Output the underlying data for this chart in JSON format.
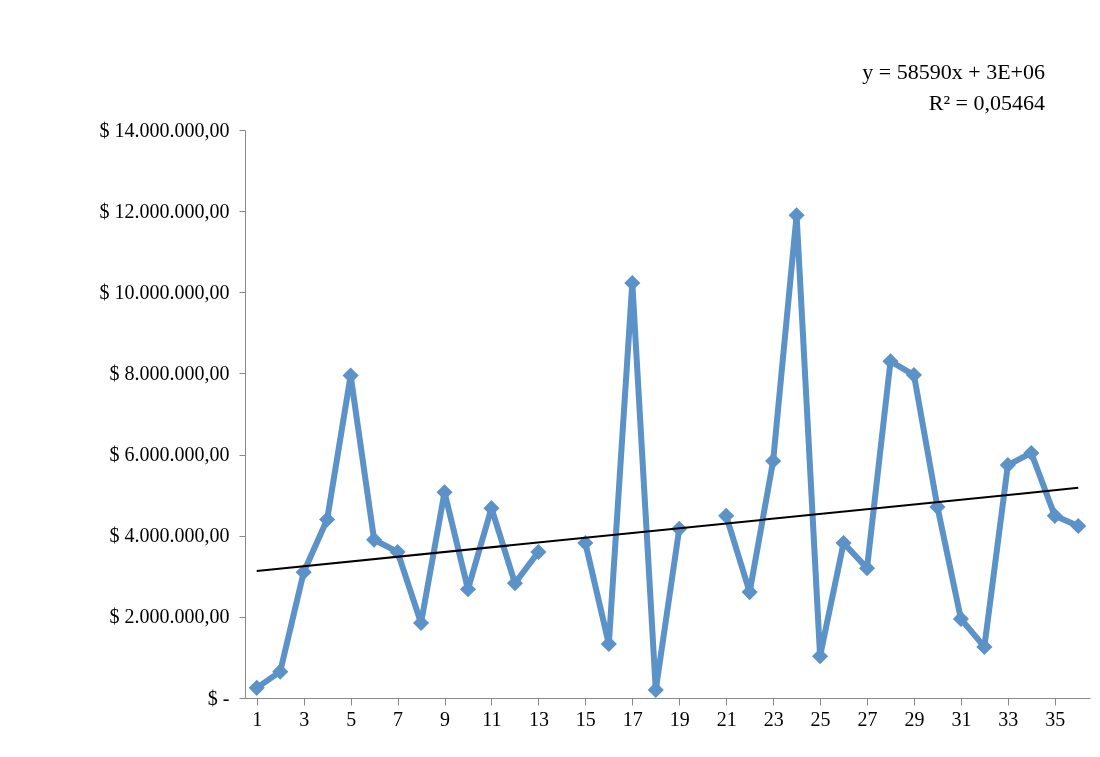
{
  "chart_data": {
    "type": "line",
    "x": [
      1,
      2,
      3,
      4,
      5,
      6,
      7,
      8,
      9,
      10,
      11,
      12,
      13,
      14,
      15,
      16,
      17,
      18,
      19,
      20,
      21,
      22,
      23,
      24,
      25,
      26,
      27,
      28,
      29,
      30,
      31,
      32,
      33,
      34,
      35,
      36
    ],
    "series": [
      {
        "color": "#5b92c8",
        "marker": "diamond",
        "values": [
          250000,
          650000,
          3100000,
          4400000,
          7950000,
          3900000,
          3600000,
          1850000,
          5070000,
          2680000,
          4680000,
          2830000,
          3600000,
          null,
          3820000,
          1330000,
          10230000,
          200000,
          4170000,
          null,
          4490000,
          2610000,
          5840000,
          11900000,
          1030000,
          3820000,
          3200000,
          8300000,
          7960000,
          4710000,
          1950000,
          1260000,
          5740000,
          6040000,
          4490000,
          4240000
        ]
      },
      {
        "type": "line",
        "color": "#000000",
        "marker": "none",
        "x": [
          1,
          36
        ],
        "values": [
          3130000,
          5180000
        ]
      }
    ],
    "xlim": [
      0.5,
      36.5
    ],
    "xticks": [
      1,
      3,
      5,
      7,
      9,
      11,
      13,
      15,
      17,
      19,
      21,
      23,
      25,
      27,
      29,
      31,
      33,
      35
    ],
    "ylim": [
      0,
      14000000
    ],
    "yticks": [
      {
        "value": 0,
        "label": "$ -"
      },
      {
        "value": 2000000,
        "label": "$ 2.000.000,00"
      },
      {
        "value": 4000000,
        "label": "$ 4.000.000,00"
      },
      {
        "value": 6000000,
        "label": "$ 6.000.000,00"
      },
      {
        "value": 8000000,
        "label": "$ 8.000.000,00"
      },
      {
        "value": 10000000,
        "label": "$ 10.000.000,00"
      },
      {
        "value": 12000000,
        "label": "$ 12.000.000,00"
      },
      {
        "value": 14000000,
        "label": "$ 14.000.000,00"
      }
    ],
    "annotations": [
      "y = 58590x + 3E+06",
      "R² = 0,05464"
    ],
    "grid": false,
    "line_style": "solid"
  }
}
